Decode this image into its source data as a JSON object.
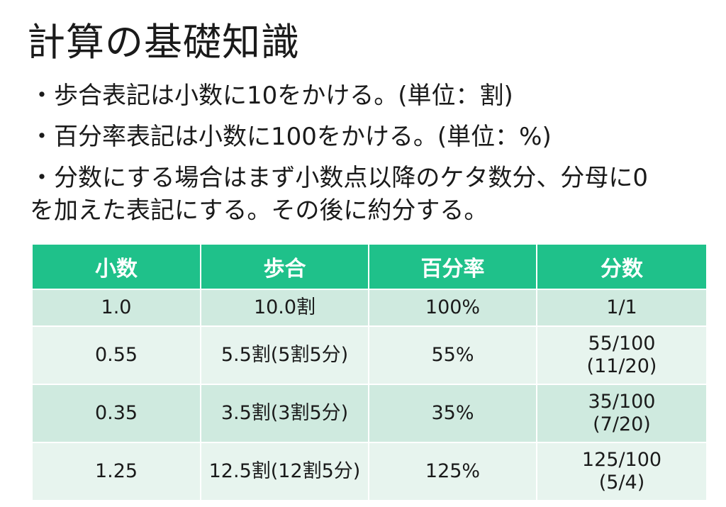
{
  "title": "計算の基礎知識",
  "bullets": [
    {
      "lines": [
        "・歩合表記は小数に10をかける。(単位：割)"
      ]
    },
    {
      "lines": [
        "・百分率表記は小数に100をかける。(単位：%)"
      ]
    },
    {
      "lines": [
        "・分数にする場合はまず小数点以降のケタ数分、分母に0",
        "を加えた表記にする。その後に約分する。"
      ]
    }
  ],
  "table": {
    "headers": [
      "小数",
      "歩合",
      "百分率",
      "分数"
    ],
    "rows": [
      {
        "decimal": "1.0",
        "buai": "10.0割",
        "percent": "100%",
        "fraction": [
          "1/1"
        ]
      },
      {
        "decimal": "0.55",
        "buai": "5.5割(5割5分)",
        "percent": "55%",
        "fraction": [
          "55/100",
          "(11/20)"
        ]
      },
      {
        "decimal": "0.35",
        "buai": "3.5割(3割5分)",
        "percent": "35%",
        "fraction": [
          "35/100",
          "(7/20)"
        ]
      },
      {
        "decimal": "1.25",
        "buai": "12.5割(12割5分)",
        "percent": "125%",
        "fraction": [
          "125/100",
          "(5/4)"
        ]
      }
    ]
  },
  "colors": {
    "header_bg": "#1fc18a",
    "row_dark": "#cfeadf",
    "row_light": "#e7f4ee"
  }
}
